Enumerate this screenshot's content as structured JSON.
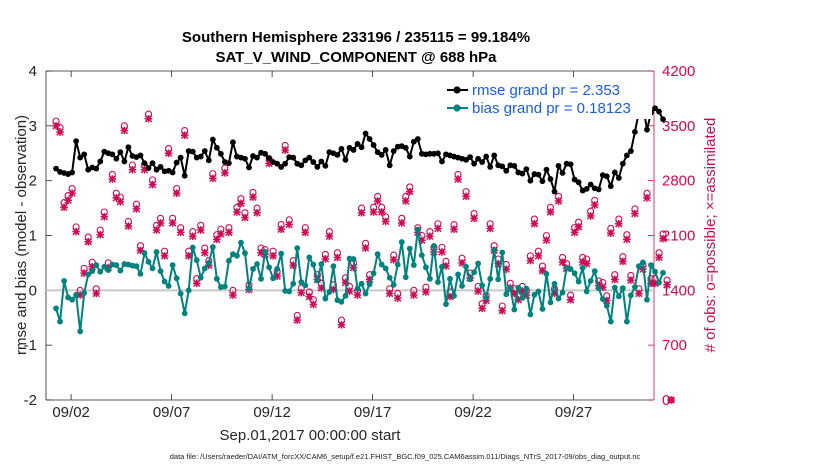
{
  "chart_data": {
    "type": "line",
    "title_line1": "Southern Hemisphere 233196 / 235115 = 99.184%",
    "title_line2": "SAT_V_WIND_COMPONENT @ 688 hPa",
    "xlabel": "Sep.01,2017 00:00:00 start",
    "ylabel_left": "rmse and bias (model - observation)",
    "ylabel_right": "# of obs: o=possible; ×=assimilated",
    "footnote": "data file: /Users/raeder/DAI/ATM_forcXX/CAM6_setup/f.e21.FHIST_BGC.f09_025.CAM6assim.011/Diags_NTrS_2017-09/obs_diag_output.nc",
    "xlim": [
      0.5,
      30.75
    ],
    "ylim_left": [
      -2,
      4
    ],
    "ylim_right": [
      0,
      4200
    ],
    "x_ticks": [
      {
        "value": 1.75,
        "label": "09/02"
      },
      {
        "value": 6.75,
        "label": "09/07"
      },
      {
        "value": 11.75,
        "label": "09/12"
      },
      {
        "value": 16.75,
        "label": "09/17"
      },
      {
        "value": 21.75,
        "label": "09/22"
      },
      {
        "value": 26.75,
        "label": "09/27"
      }
    ],
    "y_ticks_left": [
      "-2",
      "-1",
      "0",
      "1",
      "2",
      "3",
      "4"
    ],
    "y_ticks_right": [
      "0",
      "700",
      "1400",
      "2100",
      "2800",
      "3500",
      "4200"
    ],
    "legend": [
      {
        "label": "rmse grand pr = 2.353",
        "color": "#000000"
      },
      {
        "label": "bias grand pr = 0.18123",
        "color": "#00827f"
      }
    ],
    "series": [
      {
        "name": "rmse",
        "color": "#000000",
        "values": [
          2.22,
          2.16,
          2.14,
          2.12,
          2.15,
          2.72,
          2.42,
          2.48,
          2.2,
          2.24,
          2.22,
          2.35,
          2.53,
          2.5,
          2.48,
          2.4,
          2.52,
          2.35,
          2.61,
          2.45,
          2.43,
          2.46,
          2.32,
          2.23,
          2.32,
          2.2,
          2.25,
          2.17,
          2.18,
          2.15,
          2.33,
          2.42,
          2.09,
          2.54,
          2.53,
          2.42,
          2.44,
          2.54,
          2.37,
          2.75,
          2.6,
          2.49,
          2.34,
          2.32,
          2.7,
          2.44,
          2.42,
          2.4,
          2.24,
          2.45,
          2.42,
          2.51,
          2.49,
          2.41,
          2.34,
          2.31,
          2.25,
          2.31,
          2.43,
          2.42,
          2.31,
          2.28,
          2.37,
          2.42,
          2.34,
          2.25,
          2.35,
          2.27,
          2.52,
          2.5,
          2.47,
          2.58,
          2.38,
          2.6,
          2.56,
          2.67,
          2.61,
          2.86,
          2.76,
          2.65,
          2.52,
          2.47,
          2.56,
          2.28,
          2.54,
          2.62,
          2.63,
          2.6,
          2.44,
          2.71,
          2.76,
          2.49,
          2.48,
          2.49,
          2.49,
          2.5,
          2.35,
          2.48,
          2.46,
          2.44,
          2.42,
          2.4,
          2.38,
          2.43,
          2.31,
          2.4,
          2.34,
          2.44,
          2.25,
          2.46,
          2.28,
          2.26,
          2.18,
          2.28,
          2.27,
          2.15,
          2.13,
          2.21,
          2.0,
          2.12,
          2.11,
          1.99,
          2.2,
          2.03,
          1.8,
          2.27,
          2.14,
          2.31,
          2.3,
          2.02,
          1.97,
          1.82,
          1.85,
          1.93,
          1.86,
          1.84,
          2.1,
          2.08,
          1.9,
          2.15,
          2.05,
          2.31,
          2.46,
          2.54,
          2.89,
          3.25,
          3.38,
          2.93,
          3.24,
          3.32,
          3.26,
          3.12
        ]
      },
      {
        "name": "bias",
        "color": "#00827f",
        "values": [
          -0.33,
          -0.57,
          0.17,
          -0.13,
          -0.17,
          -0.08,
          -0.75,
          -0.05,
          0.29,
          0.35,
          0.46,
          0.34,
          0.43,
          0.37,
          0.47,
          0.46,
          0.36,
          0.48,
          0.47,
          0.45,
          0.44,
          0.3,
          0.68,
          0.52,
          0.4,
          0.7,
          0.35,
          0.16,
          0.08,
          0.46,
          0.22,
          -0.06,
          -0.42,
          0.0,
          0.78,
          0.55,
          0.23,
          0.4,
          0.5,
          0.79,
          0.21,
          0.06,
          0.07,
          0.54,
          0.66,
          0.63,
          0.87,
          0.68,
          0.03,
          0.39,
          0.48,
          0.21,
          0.7,
          0.42,
          0.22,
          0.39,
          0.67,
          -0.01,
          -0.02,
          0.12,
          0.77,
          0.15,
          0.09,
          0.6,
          0.47,
          0.18,
          0.48,
          -0.15,
          -0.03,
          0.44,
          -0.18,
          -0.21,
          -0.1,
          0.58,
          0.57,
          0.03,
          0.12,
          -0.06,
          0.11,
          0.31,
          0.66,
          0.47,
          0.4,
          0.23,
          0.1,
          0.47,
          0.88,
          0.24,
          0.76,
          0.46,
          1.11,
          0.64,
          0.42,
          0.21,
          0.81,
          0.15,
          0.43,
          -0.25,
          0.21,
          -0.1,
          0.29,
          0.08,
          0.43,
          0.2,
          0.33,
          0.49,
          0.09,
          -0.14,
          0.21,
          0.74,
          0.2,
          0.69,
          -0.07,
          0.04,
          -0.35,
          0.05,
          -0.14,
          0.03,
          -0.44,
          -0.08,
          -0.02,
          -0.34,
          0.3,
          -0.22,
          0.12,
          -0.15,
          -0.04,
          0.41,
          0.39,
          0.31,
          0.16,
          0.41,
          -0.02,
          0.17,
          0.35,
          0.04,
          -0.16,
          -0.28,
          -0.57,
          0.05,
          -0.11,
          0.04,
          -0.57,
          -0.09,
          0.06,
          0.44,
          0.51,
          -0.17,
          0.46,
          0.34,
          0.14,
          0.32
        ]
      },
      {
        "name": "obs possible",
        "color": "#cc0a55",
        "axis": "right",
        "values": [
          3560,
          3480,
          2520,
          2610,
          2700,
          2210,
          1400,
          1680,
          2080,
          1760,
          1420,
          2170,
          2400,
          1750,
          2880,
          2640,
          2590,
          3500,
          2280,
          3000,
          2500,
          1970,
          3000,
          3650,
          2810,
          2230,
          2320,
          1900,
          3210,
          2320,
          2700,
          2200,
          3440,
          1900,
          2150,
          1550,
          2230,
          1940,
          1780,
          2890,
          2110,
          2180,
          2960,
          2200,
          1400,
          2460,
          2570,
          2390,
          1470,
          2650,
          2450,
          1940,
          1920,
          3080,
          1900,
          1640,
          2240,
          3250,
          2300,
          1780,
          1080,
          1430,
          2200,
          1380,
          1280,
          1600,
          1490,
          1860,
          2150,
          1470,
          1880,
          1020,
          1560,
          1450,
          1750,
          1400,
          2450,
          2000,
          1600,
          2460,
          2600,
          2460,
          2340,
          1420,
          1850,
          1360,
          2320,
          2600,
          2720,
          1400,
          2200,
          2100,
          1440,
          2150,
          1950,
          2250,
          1950,
          1770,
          1380,
          2240,
          2880,
          1810,
          2660,
          1620,
          2380,
          1450,
          1230,
          1330,
          2250,
          1970,
          1800,
          1200,
          1730,
          1490,
          1420,
          1340,
          1450,
          1400,
          1840,
          2310,
          1900,
          1710,
          2100,
          2460,
          1420,
          2600,
          1820,
          1740,
          1340,
          2200,
          2270,
          1820,
          1800,
          2410,
          2550,
          1520,
          1500,
          1330,
          2190,
          1600,
          2310,
          1830,
          2110,
          1590,
          2440,
          1420,
          1730,
          2640,
          1550,
          1550,
          1880,
          2120,
          1530,
          0
        ]
      },
      {
        "name": "obs assimilated",
        "color": "#cc0a55",
        "axis": "right",
        "values": [
          3500,
          3420,
          2460,
          2550,
          2640,
          2150,
          1340,
          1620,
          2020,
          1700,
          1360,
          2110,
          2340,
          1690,
          2820,
          2580,
          2530,
          3440,
          2220,
          2940,
          2440,
          1910,
          2940,
          3590,
          2750,
          2170,
          2260,
          1840,
          3150,
          2260,
          2640,
          2140,
          3380,
          1840,
          2090,
          1490,
          2170,
          1880,
          1720,
          2830,
          2050,
          2120,
          2900,
          2140,
          1340,
          2400,
          2510,
          2330,
          1410,
          2590,
          2390,
          1880,
          1860,
          3020,
          1840,
          1580,
          2180,
          3190,
          2240,
          1720,
          1020,
          1370,
          2140,
          1320,
          1220,
          1540,
          1430,
          1800,
          2090,
          1410,
          1820,
          960,
          1500,
          1390,
          1690,
          1340,
          2390,
          1940,
          1540,
          2400,
          2540,
          2400,
          2280,
          1360,
          1790,
          1300,
          2260,
          2540,
          2660,
          1340,
          2140,
          2040,
          1380,
          2090,
          1890,
          2190,
          1890,
          1710,
          1320,
          2180,
          2820,
          1750,
          2600,
          1560,
          2320,
          1390,
          1170,
          1270,
          2190,
          1910,
          1740,
          1140,
          1670,
          1430,
          1360,
          1280,
          1390,
          1340,
          1780,
          2250,
          1840,
          1650,
          2040,
          2400,
          1360,
          2540,
          1760,
          1680,
          1280,
          2140,
          2210,
          1760,
          1740,
          2350,
          2490,
          1460,
          1440,
          1270,
          2130,
          1540,
          2250,
          1770,
          2050,
          1530,
          2380,
          1360,
          1670,
          2580,
          1490,
          1490,
          1820,
          2060,
          1470,
          0
        ]
      }
    ]
  }
}
